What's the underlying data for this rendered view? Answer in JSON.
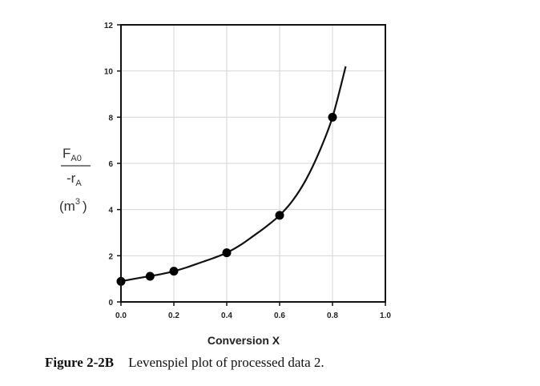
{
  "chart_data": {
    "type": "line",
    "title": "",
    "xlabel": "Conversion X",
    "ylabel": {
      "numerator_main": "F",
      "numerator_sub": "A0",
      "denominator_main": "-r",
      "denominator_sub": "A",
      "unit_open": "(m",
      "unit_sup": "3",
      "unit_close": ")"
    },
    "xlim": [
      0.0,
      1.0
    ],
    "ylim": [
      0,
      12
    ],
    "xticks": [
      "0.0",
      "0.2",
      "0.4",
      "0.6",
      "0.8",
      "1.0"
    ],
    "yticks": [
      "0",
      "2",
      "4",
      "6",
      "8",
      "10",
      "12"
    ],
    "grid": true,
    "points": {
      "x": [
        0.0,
        0.11,
        0.2,
        0.4,
        0.6,
        0.8
      ],
      "y": [
        0.89,
        1.11,
        1.33,
        2.13,
        3.75,
        8.0
      ]
    },
    "curve": {
      "x": [
        0.0,
        0.05,
        0.1,
        0.15,
        0.2,
        0.25,
        0.3,
        0.35,
        0.4,
        0.45,
        0.5,
        0.55,
        0.6,
        0.65,
        0.7,
        0.75,
        0.8,
        0.85
      ],
      "y": [
        0.89,
        1.0,
        1.1,
        1.2,
        1.33,
        1.5,
        1.7,
        1.9,
        2.13,
        2.45,
        2.85,
        3.27,
        3.75,
        4.4,
        5.3,
        6.5,
        8.0,
        10.2
      ]
    }
  },
  "caption": {
    "label": "Figure 2-2B",
    "text": "Levenspiel plot of processed data 2."
  }
}
